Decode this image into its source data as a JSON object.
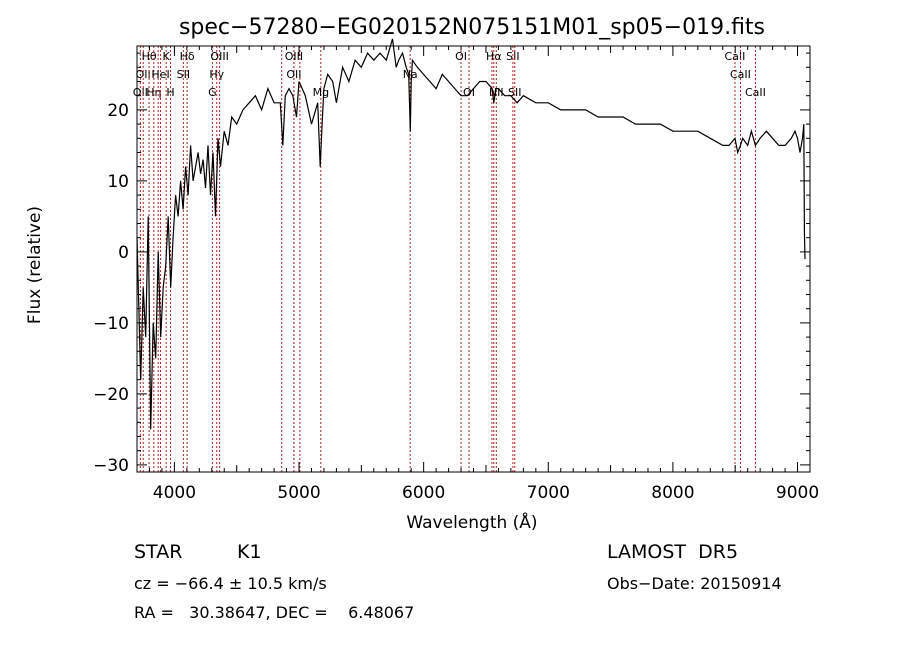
{
  "chart_data": {
    "type": "line",
    "title": "spec−57280−EG020152N075151M01_sp05−019.fits",
    "xlabel": "Wavelength (Å)",
    "ylabel": "Flux (relative)",
    "xlim": [
      3700,
      9100
    ],
    "ylim": [
      -31,
      29
    ],
    "x_ticks": [
      {
        "v": 4000,
        "label": "4000"
      },
      {
        "v": 5000,
        "label": "5000"
      },
      {
        "v": 6000,
        "label": "6000"
      },
      {
        "v": 7000,
        "label": "7000"
      },
      {
        "v": 8000,
        "label": "8000"
      },
      {
        "v": 9000,
        "label": "9000"
      }
    ],
    "y_ticks": [
      {
        "v": -30,
        "label": "−30"
      },
      {
        "v": -20,
        "label": "−20"
      },
      {
        "v": -10,
        "label": "−10"
      },
      {
        "v": 0,
        "label": "0"
      },
      {
        "v": 10,
        "label": "10"
      },
      {
        "v": 20,
        "label": "20"
      }
    ],
    "grid": false,
    "line_color": "#000000",
    "marker_color": "#b22222",
    "series": [
      {
        "x": [
          3700,
          3730,
          3750,
          3770,
          3790,
          3810,
          3830,
          3850,
          3870,
          3890,
          3910,
          3930,
          3950,
          3970,
          3990,
          4010,
          4030,
          4050,
          4070,
          4090,
          4110,
          4130,
          4150,
          4170,
          4190,
          4210,
          4230,
          4250,
          4270,
          4290,
          4310,
          4330,
          4350,
          4370,
          4400,
          4430,
          4460,
          4500,
          4550,
          4600,
          4650,
          4700,
          4750,
          4800,
          4850,
          4870,
          4890,
          4920,
          4950,
          4980,
          5000,
          5050,
          5100,
          5150,
          5170,
          5185,
          5200,
          5230,
          5270,
          5300,
          5350,
          5400,
          5450,
          5500,
          5550,
          5600,
          5650,
          5700,
          5750,
          5780,
          5800,
          5830,
          5860,
          5880,
          5893,
          5900,
          5910,
          5950,
          6000,
          6050,
          6100,
          6150,
          6200,
          6250,
          6300,
          6350,
          6400,
          6450,
          6500,
          6550,
          6563,
          6580,
          6600,
          6650,
          6700,
          6750,
          6800,
          6900,
          7000,
          7100,
          7200,
          7300,
          7400,
          7500,
          7600,
          7700,
          7800,
          7900,
          8000,
          8100,
          8200,
          8300,
          8400,
          8450,
          8498,
          8520,
          8542,
          8560,
          8600,
          8630,
          8662,
          8700,
          8750,
          8800,
          8850,
          8900,
          8950,
          8980,
          9000,
          9020,
          9040,
          9050,
          9055,
          9060
        ],
        "y": [
          2,
          -18,
          -5,
          -12,
          5,
          -25,
          -10,
          -15,
          0,
          -12,
          -5,
          -2,
          5,
          -5,
          2,
          8,
          5,
          10,
          6,
          12,
          8,
          15,
          10,
          12,
          14,
          11,
          13,
          9,
          15,
          8,
          14,
          5,
          16,
          12,
          17,
          15,
          19,
          18,
          20,
          21,
          22,
          20,
          23,
          21,
          21,
          15,
          22,
          23,
          22,
          19,
          24,
          22,
          18,
          21,
          12,
          18,
          23,
          25,
          24,
          21,
          26,
          24,
          27,
          26,
          28,
          27,
          28,
          27,
          30,
          26,
          27,
          28,
          26,
          25,
          17,
          24,
          27,
          26,
          25,
          24,
          23,
          25,
          24,
          23,
          22,
          22,
          23,
          24,
          24,
          23,
          21,
          23,
          23,
          22,
          22,
          21,
          22,
          21,
          21,
          20,
          20,
          20,
          19,
          19,
          19,
          18,
          18,
          18,
          17,
          17,
          17,
          16,
          15,
          15,
          16,
          14,
          15,
          16,
          15,
          17,
          15,
          16,
          17,
          16,
          15,
          15,
          16,
          17,
          16,
          14,
          16,
          18,
          3,
          -1
        ]
      }
    ],
    "line_markers": [
      {
        "x": 3727,
        "label": "OII",
        "row": 3
      },
      {
        "x": 3750,
        "label": "OII",
        "row": 2
      },
      {
        "x": 3797,
        "label": "Hθ",
        "row": 1
      },
      {
        "x": 3835,
        "label": "Hη",
        "row": 3
      },
      {
        "x": 3870,
        "label": "",
        "row": 0
      },
      {
        "x": 3889,
        "label": "HeI",
        "row": 2
      },
      {
        "x": 3934,
        "label": "K",
        "row": 1
      },
      {
        "x": 3969,
        "label": "H",
        "row": 3
      },
      {
        "x": 4072,
        "label": "SII",
        "row": 2
      },
      {
        "x": 4102,
        "label": "Hδ",
        "row": 1
      },
      {
        "x": 4305,
        "label": "G",
        "row": 3
      },
      {
        "x": 4340,
        "label": "Hγ",
        "row": 2
      },
      {
        "x": 4363,
        "label": "OIII",
        "row": 1
      },
      {
        "x": 4861,
        "label": "",
        "row": 0
      },
      {
        "x": 4959,
        "label": "OIII",
        "row": 1
      },
      {
        "x": 5007,
        "label": "",
        "row": 0
      },
      {
        "x": 4959,
        "label": "OII",
        "row": 2
      },
      {
        "x": 5175,
        "label": "Mg",
        "row": 3
      },
      {
        "x": 5892,
        "label": "Na",
        "row": 2
      },
      {
        "x": 6300,
        "label": "OI",
        "row": 1
      },
      {
        "x": 6364,
        "label": "OI",
        "row": 3
      },
      {
        "x": 6548,
        "label": "",
        "row": 0
      },
      {
        "x": 6563,
        "label": "Hα",
        "row": 1
      },
      {
        "x": 6583,
        "label": "NII",
        "row": 3
      },
      {
        "x": 6716,
        "label": "SII",
        "row": 1
      },
      {
        "x": 6731,
        "label": "SII",
        "row": 3
      },
      {
        "x": 8498,
        "label": "CaII",
        "row": 1
      },
      {
        "x": 8542,
        "label": "CaII",
        "row": 2
      },
      {
        "x": 8662,
        "label": "CaII",
        "row": 3
      }
    ]
  },
  "info": {
    "object_class": "STAR",
    "subclass": "K1",
    "survey": "LAMOST  DR5",
    "redshift": "cz = −66.4 ± 10.5 km/s",
    "obs_date": "Obs−Date: 20150914",
    "coords": "RA =   30.38647, DEC =    6.48067"
  }
}
